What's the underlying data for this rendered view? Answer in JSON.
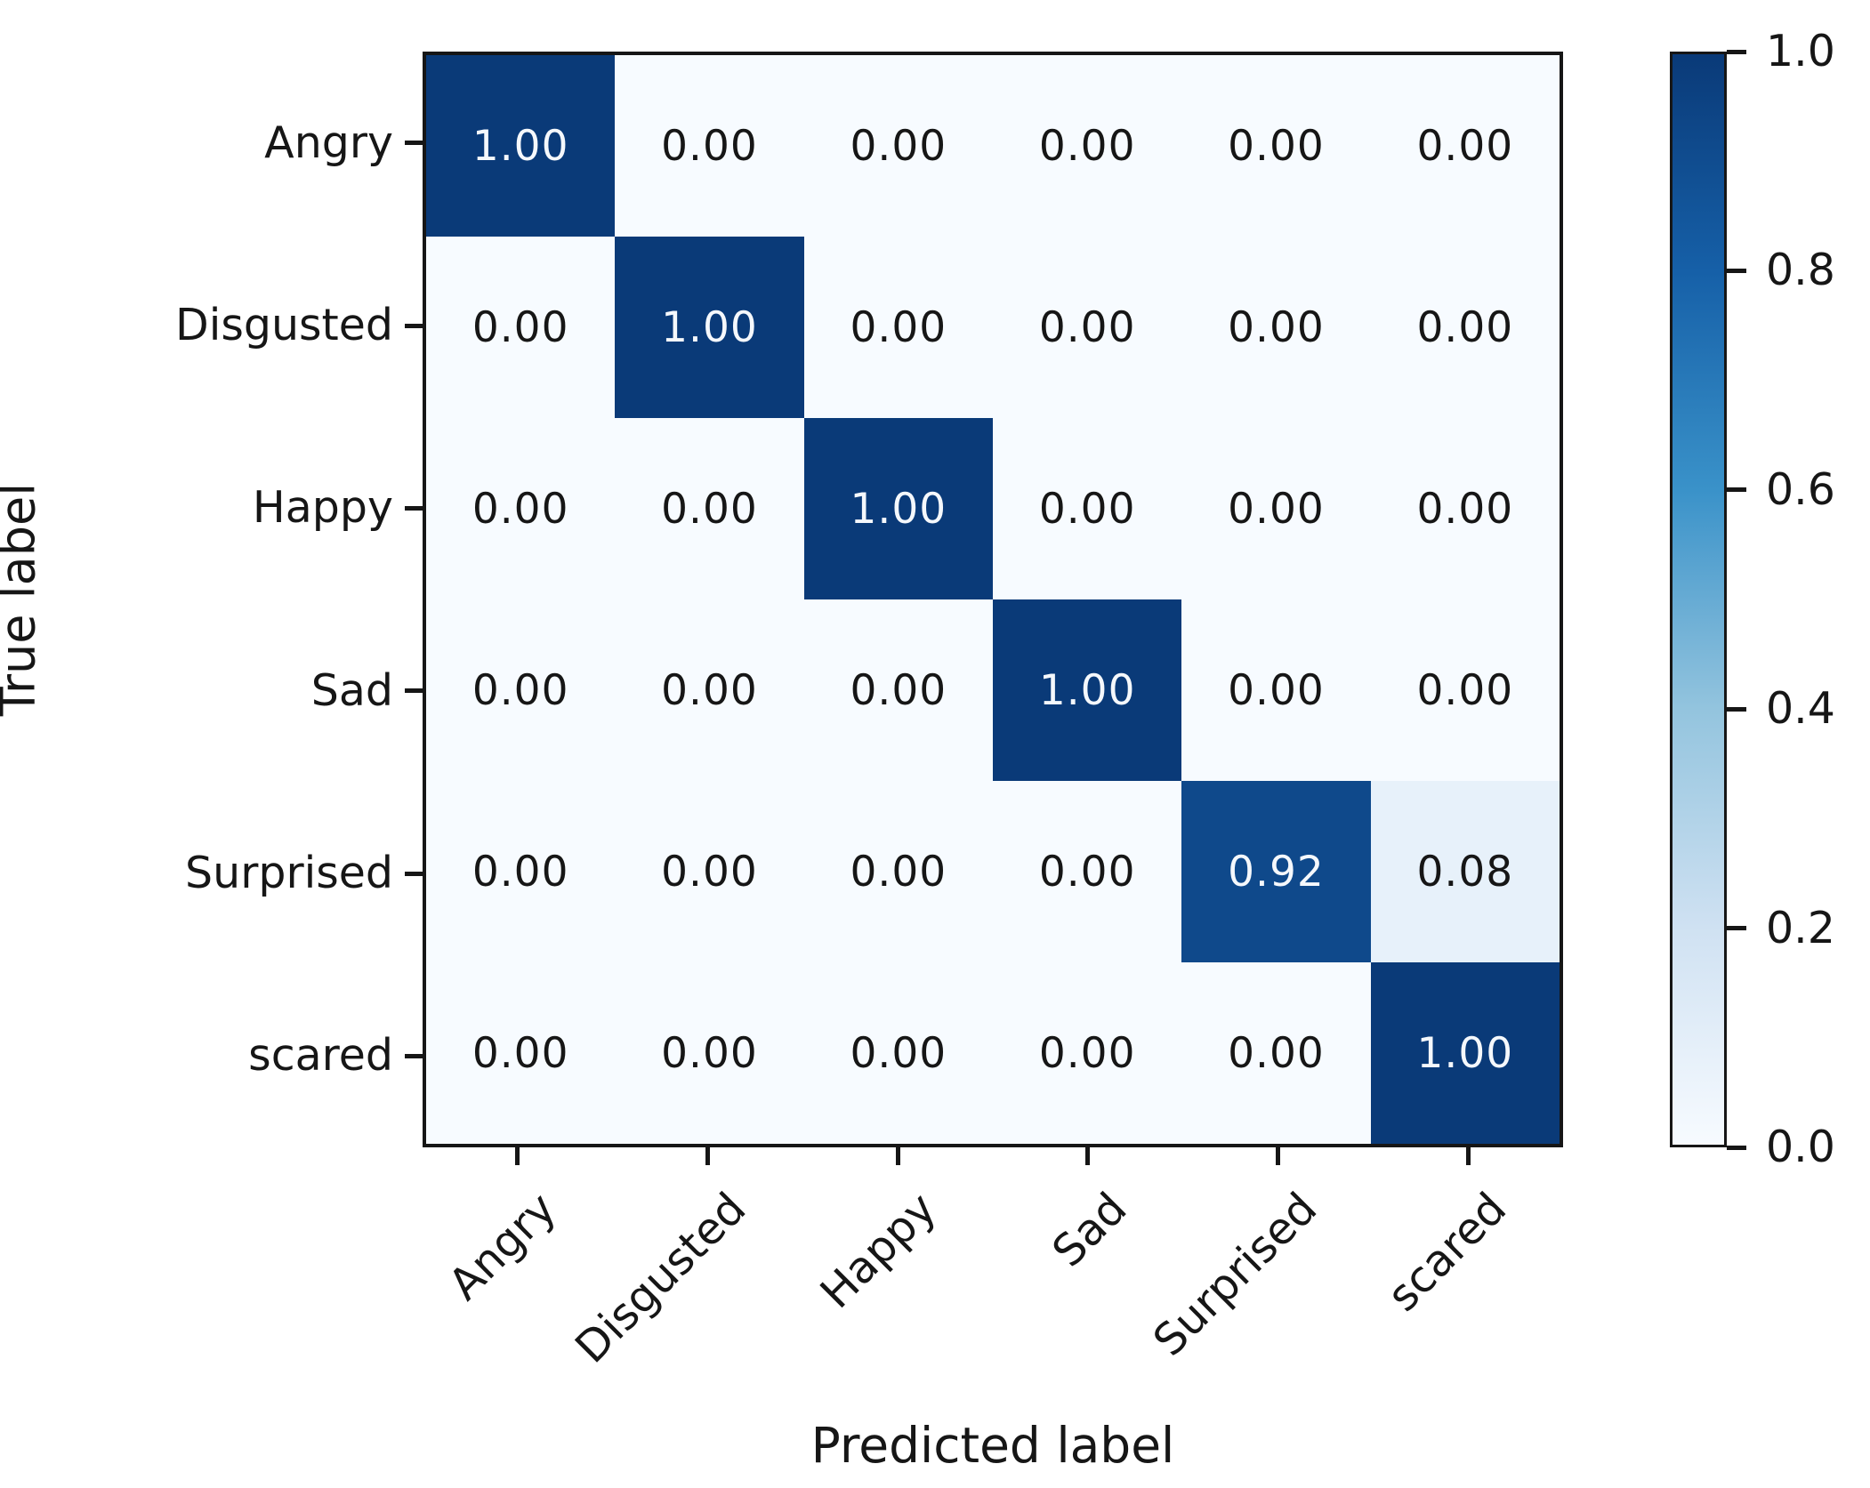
{
  "chart_data": {
    "type": "heatmap",
    "title": "",
    "xlabel": "Predicted label",
    "ylabel": "True label",
    "categories": [
      "Angry",
      "Disgusted",
      "Happy",
      "Sad",
      "Surprised",
      "scared"
    ],
    "matrix": [
      [
        1.0,
        0.0,
        0.0,
        0.0,
        0.0,
        0.0
      ],
      [
        0.0,
        1.0,
        0.0,
        0.0,
        0.0,
        0.0
      ],
      [
        0.0,
        0.0,
        1.0,
        0.0,
        0.0,
        0.0
      ],
      [
        0.0,
        0.0,
        0.0,
        1.0,
        0.0,
        0.0
      ],
      [
        0.0,
        0.0,
        0.0,
        0.0,
        0.92,
        0.08
      ],
      [
        0.0,
        0.0,
        0.0,
        0.0,
        0.0,
        1.0
      ]
    ],
    "value_format_decimals": 2,
    "colorbar": {
      "min": 0.0,
      "max": 1.0,
      "tick_labels": [
        "1.0",
        "0.8",
        "0.6",
        "0.4",
        "0.2",
        "0.0"
      ]
    },
    "colormap_name": "Blues",
    "colormap_stops": [
      {
        "t": 0.0,
        "color": "#f7fbff"
      },
      {
        "t": 0.2,
        "color": "#cfe1f2"
      },
      {
        "t": 0.4,
        "color": "#93c4de"
      },
      {
        "t": 0.6,
        "color": "#3a92c9"
      },
      {
        "t": 0.8,
        "color": "#1660a8"
      },
      {
        "t": 1.0,
        "color": "#0a3a78"
      }
    ],
    "text_color_dark_cells": "#f5f8fc",
    "text_color_light_cells": "#161616",
    "axis_color": "#161616",
    "legend_position": "right",
    "grid": false
  }
}
